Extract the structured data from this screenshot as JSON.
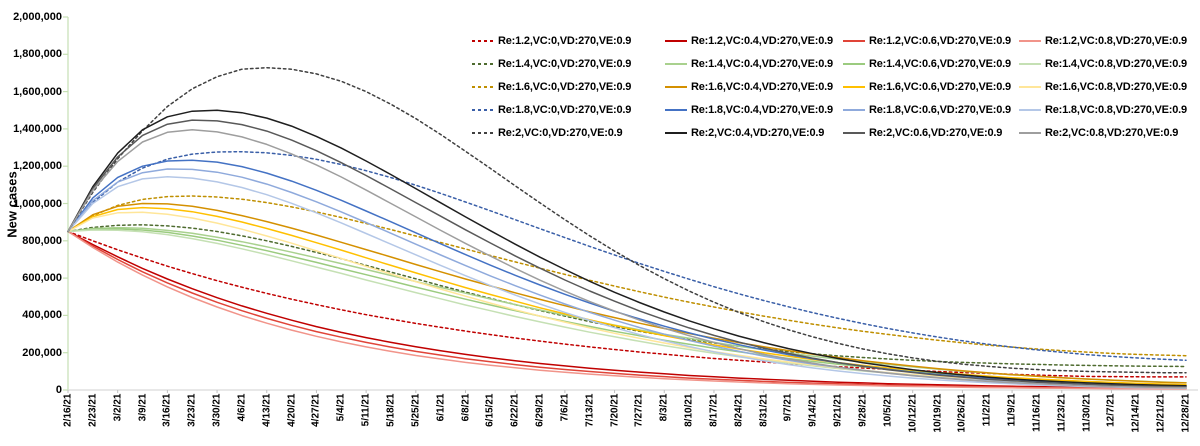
{
  "chart_data": {
    "type": "line",
    "title": "",
    "xlabel": "",
    "ylabel": "New cases",
    "grid": false,
    "legend_position": "top-right",
    "ylim": [
      0,
      2000000
    ],
    "y_tick_labels": [
      "0",
      "200,000",
      "400,000",
      "600,000",
      "800,000",
      "1,000,000",
      "1,200,000",
      "1,400,000",
      "1,600,000",
      "1,800,000",
      "2,000,000"
    ],
    "x_tick_labels": [
      "2/16/21",
      "2/23/21",
      "3/2/21",
      "3/9/21",
      "3/16/21",
      "3/23/21",
      "3/30/21",
      "4/6/21",
      "4/13/21",
      "4/20/21",
      "4/27/21",
      "5/4/21",
      "5/11/21",
      "5/18/21",
      "5/25/21",
      "6/1/21",
      "6/8/21",
      "6/15/21",
      "6/22/21",
      "6/29/21",
      "7/6/21",
      "7/13/21",
      "7/20/21",
      "7/27/21",
      "8/3/21",
      "8/10/21",
      "8/17/21",
      "8/24/21",
      "8/31/21",
      "9/7/21",
      "9/14/21",
      "9/21/21",
      "9/28/21",
      "10/5/21",
      "10/12/21",
      "10/19/21",
      "10/26/21",
      "11/2/21",
      "11/9/21",
      "11/16/21",
      "11/23/21",
      "11/30/21",
      "12/7/21",
      "12/14/21",
      "12/21/21",
      "12/28/21"
    ],
    "axis_colors": {
      "y_axis": "#C6E0B4",
      "x_axis": "#D9D9D9",
      "x_ticks": "#BFBFBF"
    },
    "unit_note": "series values are new cases in thousands (multiply by 1000)",
    "series": [
      {
        "name": "Re:1.2,VC:0,VD:270,VE:0.9",
        "re": "1.2",
        "vc": "0",
        "vd": "270",
        "ve": "0.9",
        "style": "dashed",
        "color": "#C00000",
        "values_thousands": [
          850,
          800,
          752,
          707,
          664,
          624,
          586,
          551,
          518,
          487,
          458,
          430,
          404,
          380,
          357,
          336,
          316,
          297,
          279,
          262,
          246,
          231,
          217,
          204,
          192,
          180,
          169,
          159,
          150,
          141,
          133,
          125,
          118,
          111,
          105,
          99,
          94,
          89,
          84,
          80,
          76,
          73,
          72,
          71,
          70,
          70
        ]
      },
      {
        "name": "Re:1.2,VC:0.4,VD:270,VE:0.9",
        "re": "1.2",
        "vc": "0.4",
        "vd": "270",
        "ve": "0.9",
        "style": "solid",
        "color": "#C00000",
        "values_thousands": [
          850,
          780,
          714,
          652,
          595,
          543,
          495,
          451,
          411,
          374,
          340,
          309,
          281,
          255,
          232,
          210,
          191,
          173,
          157,
          142,
          129,
          117,
          106,
          96,
          87,
          78,
          71,
          64,
          58,
          52,
          47,
          42,
          38,
          34,
          31,
          28,
          25,
          22,
          20,
          18,
          16,
          15,
          13,
          12,
          11,
          10
        ]
      },
      {
        "name": "Re:1.2,VC:0.6,VD:270,VE:0.9",
        "re": "1.2",
        "vc": "0.6",
        "vd": "270",
        "ve": "0.9",
        "style": "solid",
        "color": "#E04438",
        "values_thousands": [
          850,
          772,
          700,
          634,
          574,
          520,
          470,
          425,
          384,
          347,
          313,
          283,
          255,
          230,
          207,
          187,
          168,
          151,
          136,
          122,
          110,
          99,
          89,
          80,
          72,
          64,
          58,
          52,
          46,
          41,
          37,
          33,
          30,
          26,
          24,
          21,
          19,
          17,
          15,
          13,
          12,
          11,
          10,
          9,
          8,
          7
        ]
      },
      {
        "name": "Re:1.2,VC:0.8,VD:270,VE:0.9",
        "re": "1.2",
        "vc": "0.8",
        "vd": "270",
        "ve": "0.9",
        "style": "solid",
        "color": "#F1948A",
        "values_thousands": [
          850,
          764,
          686,
          616,
          553,
          496,
          445,
          399,
          358,
          321,
          288,
          258,
          231,
          207,
          185,
          166,
          148,
          133,
          119,
          106,
          95,
          85,
          76,
          68,
          60,
          54,
          48,
          43,
          38,
          34,
          30,
          27,
          24,
          21,
          19,
          17,
          15,
          13,
          12,
          10,
          9,
          8,
          7,
          7,
          6,
          6
        ]
      },
      {
        "name": "Re:1.4,VC:0,VD:270,VE:0.9",
        "re": "1.4",
        "vc": "0",
        "vd": "270",
        "ve": "0.9",
        "style": "dashed",
        "color": "#4E6B2F",
        "values_thousands": [
          850,
          872,
          883,
          886,
          880,
          868,
          850,
          827,
          800,
          770,
          738,
          704,
          668,
          632,
          596,
          560,
          525,
          491,
          458,
          426,
          396,
          367,
          340,
          315,
          292,
          271,
          252,
          235,
          220,
          206,
          194,
          183,
          174,
          166,
          159,
          153,
          148,
          144,
          140,
          137,
          134,
          132,
          130,
          128,
          127,
          126
        ]
      },
      {
        "name": "Re:1.4,VC:0.4,VD:270,VE:0.9",
        "re": "1.4",
        "vc": "0.4",
        "vd": "270",
        "ve": "0.9",
        "style": "solid",
        "color": "#A9D18E",
        "values_thousands": [
          850,
          866,
          871,
          867,
          856,
          840,
          819,
          795,
          768,
          739,
          709,
          678,
          646,
          614,
          582,
          550,
          519,
          488,
          458,
          429,
          401,
          374,
          348,
          323,
          299,
          277,
          255,
          235,
          216,
          198,
          181,
          165,
          150,
          137,
          124,
          112,
          101,
          91,
          82,
          74,
          66,
          59,
          53,
          48,
          43,
          39
        ]
      },
      {
        "name": "Re:1.4,VC:0.6,VD:270,VE:0.9",
        "re": "1.4",
        "vc": "0.6",
        "vd": "270",
        "ve": "0.9",
        "style": "solid",
        "color": "#9BCB7F",
        "values_thousands": [
          850,
          862,
          864,
          858,
          845,
          826,
          803,
          776,
          747,
          716,
          684,
          651,
          618,
          585,
          552,
          519,
          487,
          456,
          425,
          396,
          368,
          341,
          315,
          291,
          267,
          245,
          224,
          205,
          186,
          169,
          153,
          138,
          125,
          112,
          100,
          90,
          80,
          71,
          63,
          56,
          49,
          43,
          38,
          33,
          29,
          26
        ]
      },
      {
        "name": "Re:1.4,VC:0.8,VD:270,VE:0.9",
        "re": "1.4",
        "vc": "0.8",
        "vd": "270",
        "ve": "0.9",
        "style": "solid",
        "color": "#C5E0B4",
        "values_thousands": [
          850,
          858,
          857,
          849,
          833,
          812,
          786,
          757,
          726,
          693,
          659,
          625,
          590,
          556,
          522,
          489,
          456,
          425,
          394,
          365,
          337,
          310,
          285,
          261,
          238,
          217,
          197,
          178,
          160,
          144,
          129,
          115,
          102,
          91,
          80,
          70,
          62,
          54,
          47,
          41,
          35,
          30,
          26,
          22,
          19,
          17
        ]
      },
      {
        "name": "Re:1.6,VC:0,VD:270,VE:0.9",
        "re": "1.6",
        "vc": "0",
        "vd": "270",
        "ve": "0.9",
        "style": "dashed",
        "color": "#BF8F00",
        "values_thousands": [
          850,
          935,
          990,
          1022,
          1037,
          1040,
          1035,
          1023,
          1005,
          982,
          955,
          925,
          893,
          860,
          826,
          791,
          756,
          721,
          687,
          653,
          620,
          588,
          557,
          527,
          498,
          471,
          445,
          420,
          396,
          374,
          353,
          333,
          315,
          298,
          282,
          267,
          253,
          241,
          230,
          220,
          211,
          203,
          196,
          191,
          187,
          184
        ]
      },
      {
        "name": "Re:1.6,VC:0.4,VD:270,VE:0.9",
        "re": "1.6",
        "vc": "0.4",
        "vd": "270",
        "ve": "0.9",
        "style": "solid",
        "color": "#D49000",
        "values_thousands": [
          850,
          940,
          985,
          1000,
          998,
          985,
          963,
          935,
          903,
          868,
          831,
          792,
          753,
          713,
          673,
          634,
          595,
          558,
          521,
          486,
          452,
          419,
          388,
          358,
          330,
          303,
          278,
          254,
          232,
          211,
          192,
          174,
          157,
          142,
          128,
          115,
          103,
          92,
          82,
          74,
          66,
          59,
          53,
          47,
          42,
          38
        ]
      },
      {
        "name": "Re:1.6,VC:0.6,VD:270,VE:0.9",
        "re": "1.6",
        "vc": "0.6",
        "vd": "270",
        "ve": "0.9",
        "style": "solid",
        "color": "#FFC000",
        "values_thousands": [
          850,
          930,
          968,
          978,
          972,
          956,
          931,
          901,
          866,
          829,
          790,
          750,
          709,
          668,
          628,
          588,
          549,
          512,
          476,
          441,
          408,
          376,
          346,
          318,
          291,
          266,
          242,
          220,
          200,
          181,
          163,
          147,
          132,
          118,
          106,
          94,
          84,
          75,
          66,
          59,
          52,
          46,
          41,
          36,
          32,
          28
        ]
      },
      {
        "name": "Re:1.6,VC:0.8,VD:270,VE:0.9",
        "re": "1.6",
        "vc": "0.8",
        "vd": "270",
        "ve": "0.9",
        "style": "solid",
        "color": "#FFE699",
        "values_thousands": [
          850,
          922,
          950,
          953,
          942,
          922,
          895,
          862,
          826,
          787,
          746,
          705,
          663,
          622,
          581,
          541,
          503,
          466,
          430,
          396,
          364,
          333,
          304,
          277,
          252,
          228,
          206,
          186,
          167,
          150,
          134,
          119,
          106,
          94,
          83,
          73,
          64,
          56,
          49,
          43,
          37,
          32,
          28,
          24,
          21,
          18
        ]
      },
      {
        "name": "Re:1.8,VC:0,VD:270,VE:0.9",
        "re": "1.8",
        "vc": "0",
        "vd": "270",
        "ve": "0.9",
        "style": "dashed",
        "color": "#3A5FA8",
        "values_thousands": [
          850,
          1005,
          1115,
          1190,
          1238,
          1265,
          1276,
          1278,
          1272,
          1258,
          1237,
          1209,
          1176,
          1139,
          1098,
          1054,
          1008,
          961,
          913,
          865,
          817,
          770,
          724,
          679,
          636,
          594,
          554,
          516,
          480,
          446,
          414,
          384,
          356,
          330,
          306,
          284,
          264,
          246,
          230,
          215,
          202,
          190,
          180,
          172,
          165,
          159
        ]
      },
      {
        "name": "Re:1.8,VC:0.4,VD:270,VE:0.9",
        "re": "1.8",
        "vc": "0.4",
        "vd": "270",
        "ve": "0.9",
        "style": "solid",
        "color": "#4472C4",
        "values_thousands": [
          850,
          1030,
          1140,
          1200,
          1228,
          1232,
          1222,
          1198,
          1163,
          1120,
          1071,
          1017,
          960,
          902,
          843,
          784,
          726,
          669,
          615,
          563,
          513,
          466,
          422,
          381,
          342,
          306,
          273,
          243,
          215,
          190,
          167,
          146,
          128,
          111,
          96,
          83,
          72,
          62,
          53,
          45,
          39,
          33,
          28,
          24,
          21,
          18
        ]
      },
      {
        "name": "Re:1.8,VC:0.6,VD:270,VE:0.9",
        "re": "1.8",
        "vc": "0.6",
        "vd": "270",
        "ve": "0.9",
        "style": "solid",
        "color": "#8FAADC",
        "values_thousands": [
          850,
          1015,
          1115,
          1165,
          1185,
          1183,
          1168,
          1141,
          1104,
          1059,
          1009,
          955,
          898,
          840,
          782,
          724,
          667,
          612,
          559,
          509,
          461,
          416,
          374,
          335,
          299,
          266,
          235,
          208,
          182,
          160,
          139,
          121,
          105,
          91,
          78,
          67,
          57,
          49,
          41,
          35,
          30,
          25,
          21,
          18,
          15,
          13
        ]
      },
      {
        "name": "Re:1.8,VC:0.8,VD:270,VE:0.9",
        "re": "1.8",
        "vc": "0.8",
        "vd": "270",
        "ve": "0.9",
        "style": "solid",
        "color": "#B4C7E7",
        "values_thousands": [
          850,
          1000,
          1090,
          1132,
          1143,
          1136,
          1116,
          1086,
          1047,
          1001,
          950,
          896,
          839,
          782,
          725,
          668,
          613,
          560,
          509,
          461,
          416,
          373,
          334,
          297,
          264,
          233,
          205,
          180,
          157,
          136,
          118,
          102,
          88,
          75,
          64,
          54,
          46,
          39,
          33,
          27,
          23,
          19,
          16,
          13,
          11,
          9
        ]
      },
      {
        "name": "Re:2,VC:0,VD:270,VE:0.9",
        "re": "2",
        "vc": "0",
        "vd": "270",
        "ve": "0.9",
        "style": "dashed",
        "color": "#404040",
        "values_thousands": [
          850,
          1060,
          1240,
          1390,
          1520,
          1615,
          1680,
          1720,
          1728,
          1720,
          1695,
          1655,
          1600,
          1532,
          1455,
          1370,
          1280,
          1188,
          1095,
          1003,
          913,
          827,
          745,
          668,
          597,
          531,
          471,
          416,
          367,
          323,
          284,
          250,
          220,
          194,
          172,
          154,
          139,
          127,
          117,
          110,
          104,
          100,
          97,
          95,
          93,
          92
        ]
      },
      {
        "name": "Re:2,VC:0.4,VD:270,VE:0.9",
        "re": "2",
        "vc": "0.4",
        "vd": "270",
        "ve": "0.9",
        "style": "solid",
        "color": "#1F1F1F",
        "values_thousands": [
          850,
          1090,
          1270,
          1395,
          1465,
          1495,
          1500,
          1487,
          1458,
          1415,
          1360,
          1297,
          1228,
          1155,
          1080,
          1004,
          928,
          854,
          782,
          712,
          646,
          583,
          524,
          469,
          418,
          371,
          328,
          289,
          254,
          222,
          194,
          169,
          146,
          127,
          109,
          94,
          81,
          69,
          59,
          51,
          44,
          38,
          33,
          29,
          26,
          23
        ]
      },
      {
        "name": "Re:2,VC:0.6,VD:270,VE:0.9",
        "re": "2",
        "vc": "0.6",
        "vd": "270",
        "ve": "0.9",
        "style": "solid",
        "color": "#595959",
        "values_thousands": [
          850,
          1080,
          1250,
          1365,
          1425,
          1447,
          1443,
          1423,
          1388,
          1340,
          1283,
          1219,
          1150,
          1078,
          1005,
          932,
          859,
          788,
          719,
          653,
          590,
          531,
          476,
          424,
          377,
          333,
          293,
          257,
          225,
          196,
          170,
          147,
          127,
          109,
          94,
          80,
          69,
          58,
          50,
          42,
          36,
          31,
          26,
          22,
          19,
          17
        ]
      },
      {
        "name": "Re:2,VC:0.8,VD:270,VE:0.9",
        "re": "2",
        "vc": "0.8",
        "vd": "270",
        "ve": "0.9",
        "style": "solid",
        "color": "#9E9E9E",
        "values_thousands": [
          850,
          1070,
          1225,
          1330,
          1382,
          1395,
          1384,
          1357,
          1317,
          1266,
          1207,
          1142,
          1072,
          1000,
          928,
          856,
          786,
          718,
          652,
          589,
          530,
          474,
          423,
          375,
          331,
          291,
          255,
          222,
          192,
          166,
          143,
          123,
          105,
          90,
          76,
          65,
          55,
          46,
          39,
          33,
          28,
          23,
          19,
          16,
          14,
          12
        ]
      }
    ]
  }
}
